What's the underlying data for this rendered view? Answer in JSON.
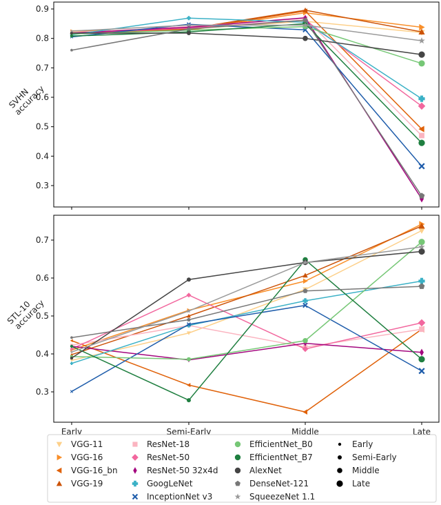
{
  "chart_data": {
    "type": "line",
    "categories": [
      "Early",
      "Semi-Early",
      "Middle",
      "Late"
    ],
    "panels": [
      {
        "name": "svhn",
        "ylabel": [
          "SVHN",
          "accuracy"
        ],
        "ylim": [
          0.22,
          0.925
        ],
        "yticks": [
          0.3,
          0.4,
          0.5,
          0.6,
          0.7,
          0.8,
          0.9
        ],
        "series": [
          {
            "name": "VGG-11",
            "values": [
              0.823,
              0.832,
              0.858,
              0.82
            ]
          },
          {
            "name": "VGG-16",
            "values": [
              0.826,
              0.828,
              0.887,
              0.838
            ]
          },
          {
            "name": "VGG-16_bn",
            "values": [
              0.818,
              0.83,
              0.893,
              0.492
            ]
          },
          {
            "name": "VGG-19",
            "values": [
              0.82,
              0.833,
              0.896,
              0.822
            ]
          },
          {
            "name": "ResNet-18",
            "values": [
              0.82,
              0.84,
              0.868,
              0.47
            ]
          },
          {
            "name": "ResNet-50",
            "values": [
              0.817,
              0.835,
              0.862,
              0.57
            ]
          },
          {
            "name": "ResNet-50 32x4d",
            "values": [
              0.818,
              0.838,
              0.87,
              0.255
            ]
          },
          {
            "name": "GoogLeNet",
            "values": [
              0.812,
              0.869,
              0.855,
              0.595
            ]
          },
          {
            "name": "InceptionNet v3",
            "values": [
              0.805,
              0.848,
              0.829,
              0.366
            ]
          },
          {
            "name": "EfficientNet_B0",
            "values": [
              0.815,
              0.828,
              0.84,
              0.715
            ]
          },
          {
            "name": "EfficientNet_B7",
            "values": [
              0.808,
              0.822,
              0.85,
              0.445
            ]
          },
          {
            "name": "AlexNet",
            "values": [
              0.818,
              0.818,
              0.8,
              0.745
            ]
          },
          {
            "name": "DenseNet-121",
            "values": [
              0.76,
              0.832,
              0.862,
              0.265
            ]
          },
          {
            "name": "SqueezeNet 1.1",
            "values": [
              0.825,
              0.845,
              0.845,
              0.792
            ]
          }
        ]
      },
      {
        "name": "stl10",
        "ylabel": [
          "STL-10",
          "accuracy"
        ],
        "ylim": [
          0.225,
          0.765
        ],
        "yticks": [
          0.3,
          0.4,
          0.5,
          0.6,
          0.7
        ],
        "xticklabels": [
          "Early",
          "Semi-Early",
          "Middle",
          "Late"
        ],
        "series": [
          {
            "name": "VGG-11",
            "values": [
              0.383,
              0.455,
              0.57,
              0.725
            ]
          },
          {
            "name": "VGG-16",
            "values": [
              0.41,
              0.515,
              0.592,
              0.742
            ]
          },
          {
            "name": "VGG-16_bn",
            "values": [
              0.435,
              0.318,
              0.247,
              0.465
            ]
          },
          {
            "name": "VGG-19",
            "values": [
              0.398,
              0.5,
              0.607,
              0.737
            ]
          },
          {
            "name": "ResNet-18",
            "values": [
              0.423,
              0.475,
              0.418,
              0.465
            ]
          },
          {
            "name": "ResNet-50",
            "values": [
              0.413,
              0.555,
              0.413,
              0.482
            ]
          },
          {
            "name": "ResNet-50 32x4d",
            "values": [
              0.42,
              0.384,
              0.428,
              0.404
            ]
          },
          {
            "name": "GoogLeNet",
            "values": [
              0.375,
              0.475,
              0.54,
              0.592
            ]
          },
          {
            "name": "InceptionNet v3",
            "values": [
              0.301,
              0.478,
              0.528,
              0.355
            ]
          },
          {
            "name": "EfficientNet_B0",
            "values": [
              0.393,
              0.386,
              0.435,
              0.695
            ]
          },
          {
            "name": "EfficientNet_B7",
            "values": [
              0.42,
              0.278,
              0.648,
              0.386
            ]
          },
          {
            "name": "AlexNet",
            "values": [
              0.389,
              0.596,
              0.641,
              0.67
            ]
          },
          {
            "name": "DenseNet-121",
            "values": [
              0.443,
              0.49,
              0.566,
              0.578
            ]
          },
          {
            "name": "SqueezeNet 1.1",
            "values": [
              0.405,
              0.513,
              0.641,
              0.682
            ]
          }
        ]
      }
    ],
    "legend": {
      "placement": "bottom",
      "models": [
        {
          "name": "VGG-11",
          "color": "#fdd08a",
          "marker": "triangle-down"
        },
        {
          "name": "VGG-16",
          "color": "#f98f2a",
          "marker": "triangle-right"
        },
        {
          "name": "VGG-16_bn",
          "color": "#e0620a",
          "marker": "triangle-left"
        },
        {
          "name": "VGG-19",
          "color": "#cc5308",
          "marker": "triangle-up"
        },
        {
          "name": "ResNet-18",
          "color": "#fbb4c0",
          "marker": "square"
        },
        {
          "name": "ResNet-50",
          "color": "#f2679e",
          "marker": "diamond"
        },
        {
          "name": "ResNet-50 32x4d",
          "color": "#a3067e",
          "marker": "thin-diamond"
        },
        {
          "name": "GoogLeNet",
          "color": "#3bb1c6",
          "marker": "plus"
        },
        {
          "name": "InceptionNet v3",
          "color": "#1f5dab",
          "marker": "x"
        },
        {
          "name": "EfficientNet_B0",
          "color": "#76c776",
          "marker": "circle"
        },
        {
          "name": "EfficientNet_B7",
          "color": "#1f7f40",
          "marker": "circle"
        },
        {
          "name": "AlexNet",
          "color": "#454545",
          "marker": "circle"
        },
        {
          "name": "DenseNet-121",
          "color": "#777777",
          "marker": "pentagon"
        },
        {
          "name": "SqueezeNet 1.1",
          "color": "#9a9a9a",
          "marker": "star"
        }
      ],
      "sizes": [
        {
          "name": "Early"
        },
        {
          "name": "Semi-Early"
        },
        {
          "name": "Middle"
        },
        {
          "name": "Late"
        }
      ]
    },
    "xlabel": "",
    "grid": false
  }
}
